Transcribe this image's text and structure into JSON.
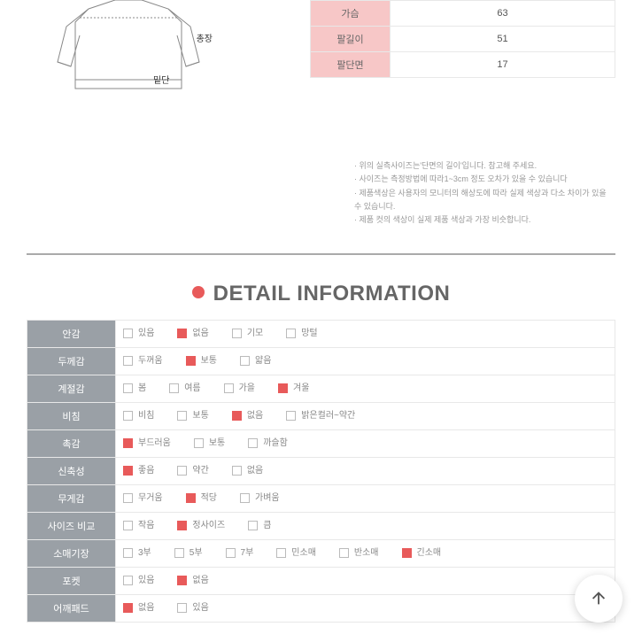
{
  "sketch_labels": {
    "total_length": "총장",
    "hem": "밑단"
  },
  "size_rows": [
    {
      "label": "가슴",
      "value": "63"
    },
    {
      "label": "팔길이",
      "value": "51"
    },
    {
      "label": "팔단면",
      "value": "17"
    }
  ],
  "notes": [
    "· 위의 실측사이즈는'단면의 길이'입니다. 참고해 주세요.",
    "· 사이즈는 측정방법에 따라1~3cm 정도 오차가 있을 수 있습니다",
    "· 제품색상은 사용자의 모니터의 해상도에 따라 실제 색상과 다소 차이가 있을 수 있습니다.",
    "· 제품 컷의 색상이 실제 제품 색상과 가장 비슷합니다."
  ],
  "detail_title": "DETAIL INFORMATION",
  "colors": {
    "accent": "#e85a5a",
    "header_bg": "#9aa0a6",
    "size_header_bg": "#f7c7c7",
    "border": "#e8e8e8"
  },
  "detail_rows": [
    {
      "label": "안감",
      "opts": [
        {
          "t": "있음",
          "c": false
        },
        {
          "t": "없음",
          "c": true
        },
        {
          "t": "기모",
          "c": false
        },
        {
          "t": "망털",
          "c": false
        }
      ]
    },
    {
      "label": "두께감",
      "opts": [
        {
          "t": "두꺼움",
          "c": false
        },
        {
          "t": "보통",
          "c": true
        },
        {
          "t": "얇음",
          "c": false
        }
      ]
    },
    {
      "label": "계절감",
      "opts": [
        {
          "t": "봄",
          "c": false
        },
        {
          "t": "여름",
          "c": false
        },
        {
          "t": "가을",
          "c": false
        },
        {
          "t": "겨울",
          "c": true
        }
      ]
    },
    {
      "label": "비침",
      "opts": [
        {
          "t": "비침",
          "c": false
        },
        {
          "t": "보통",
          "c": false
        },
        {
          "t": "없음",
          "c": true
        },
        {
          "t": "밝은컬러~약간",
          "c": false
        }
      ]
    },
    {
      "label": "촉감",
      "opts": [
        {
          "t": "부드러움",
          "c": true
        },
        {
          "t": "보통",
          "c": false
        },
        {
          "t": "까슬함",
          "c": false
        }
      ]
    },
    {
      "label": "신축성",
      "opts": [
        {
          "t": "좋음",
          "c": true
        },
        {
          "t": "약간",
          "c": false
        },
        {
          "t": "없음",
          "c": false
        }
      ]
    },
    {
      "label": "무게감",
      "opts": [
        {
          "t": "무거움",
          "c": false
        },
        {
          "t": "적당",
          "c": true
        },
        {
          "t": "가벼움",
          "c": false
        }
      ]
    },
    {
      "label": "사이즈 비교",
      "opts": [
        {
          "t": "작음",
          "c": false
        },
        {
          "t": "정사이즈",
          "c": true
        },
        {
          "t": "큼",
          "c": false
        }
      ]
    },
    {
      "label": "소매기장",
      "opts": [
        {
          "t": "3부",
          "c": false
        },
        {
          "t": "5부",
          "c": false
        },
        {
          "t": "7부",
          "c": false
        },
        {
          "t": "민소매",
          "c": false
        },
        {
          "t": "반소매",
          "c": false
        },
        {
          "t": "긴소매",
          "c": true
        }
      ]
    },
    {
      "label": "포켓",
      "opts": [
        {
          "t": "있음",
          "c": false
        },
        {
          "t": "없음",
          "c": true
        }
      ]
    },
    {
      "label": "어깨패드",
      "opts": [
        {
          "t": "없음",
          "c": true
        },
        {
          "t": "있음",
          "c": false
        }
      ]
    }
  ]
}
